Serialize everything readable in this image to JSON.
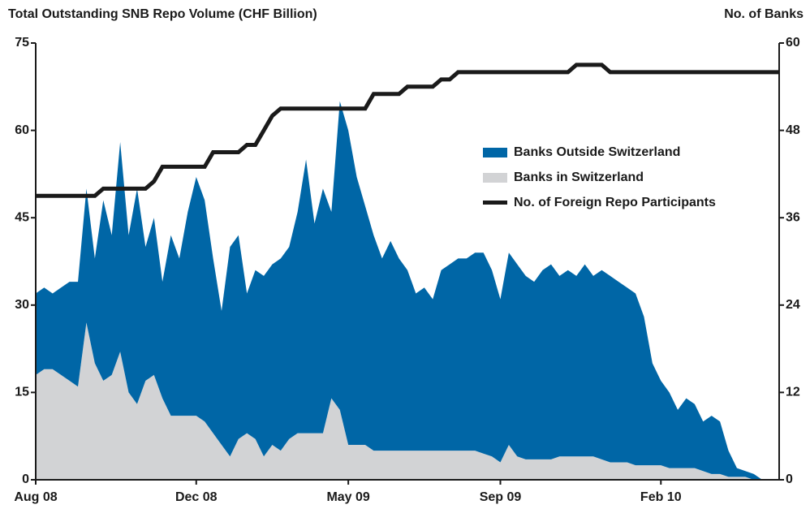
{
  "chart_data": {
    "type": "stacked_area",
    "title": "Total Outstanding SNB Repo Volume (CHF Billion)",
    "y2_label": "No. of Banks",
    "categories": [
      "Aug 08",
      null,
      null,
      null,
      null,
      null,
      null,
      null,
      null,
      null,
      null,
      null,
      null,
      null,
      null,
      null,
      null,
      null,
      null,
      "Dec 08",
      null,
      null,
      null,
      null,
      null,
      null,
      null,
      null,
      null,
      null,
      null,
      null,
      null,
      null,
      null,
      null,
      null,
      "May 09",
      null,
      null,
      null,
      null,
      null,
      null,
      null,
      null,
      null,
      null,
      null,
      null,
      null,
      null,
      null,
      null,
      null,
      "Sep 09",
      null,
      null,
      null,
      null,
      null,
      null,
      null,
      null,
      null,
      null,
      null,
      null,
      null,
      null,
      null,
      null,
      null,
      null,
      "Feb 10",
      null,
      null,
      null,
      null,
      null,
      null,
      null,
      null,
      null,
      null,
      null,
      null,
      null,
      null
    ],
    "series": [
      {
        "name": "Banks in Switzerland",
        "color": "#d2d3d5",
        "values": [
          18,
          19,
          19,
          18,
          17,
          16,
          27,
          20,
          17,
          18,
          22,
          15,
          13,
          17,
          18,
          14,
          11,
          11,
          11,
          11,
          10,
          8,
          6,
          4,
          7,
          8,
          7,
          4,
          6,
          5,
          7,
          8,
          8,
          8,
          8,
          14,
          12,
          6,
          6,
          6,
          5,
          5,
          5,
          5,
          5,
          5,
          5,
          5,
          5,
          5,
          5,
          5,
          5,
          4.5,
          4,
          3,
          6,
          4,
          3.5,
          3.5,
          3.5,
          3.5,
          4,
          4,
          4,
          4,
          4,
          3.5,
          3,
          3,
          3,
          2.5,
          2.5,
          2.5,
          2.5,
          2,
          2,
          2,
          2,
          1.5,
          1,
          1,
          0.5,
          0.5,
          0.5,
          0,
          0,
          0,
          0
        ]
      },
      {
        "name": "Banks Outside Switzerland",
        "color": "#0066a6",
        "values": [
          14,
          14,
          13,
          15,
          17,
          18,
          23,
          18,
          31,
          24,
          36,
          27,
          37,
          23,
          27,
          20,
          31,
          27,
          35,
          41,
          38,
          30,
          23,
          36,
          35,
          24,
          29,
          31,
          31,
          33,
          33,
          38,
          47,
          36,
          42,
          32,
          53,
          54,
          46,
          41,
          37,
          33,
          36,
          33,
          31,
          27,
          28,
          26,
          31,
          32,
          33,
          33,
          34,
          34.5,
          32,
          28,
          33,
          33,
          31.5,
          30.5,
          32.5,
          33.5,
          31,
          32,
          31,
          33,
          31,
          32.5,
          32,
          31,
          30,
          29.5,
          25.5,
          17.5,
          14.5,
          13,
          10,
          12,
          11,
          8.5,
          10,
          9,
          4.5,
          1.5,
          1,
          1,
          0,
          0,
          0
        ]
      },
      {
        "name": "No. of Foreign Repo Participants",
        "color": "#1a1a1a",
        "axis": "y2",
        "values": [
          39,
          39,
          39,
          39,
          39,
          39,
          39,
          39,
          40,
          40,
          40,
          40,
          40,
          40,
          41,
          43,
          43,
          43,
          43,
          43,
          43,
          45,
          45,
          45,
          45,
          46,
          46,
          48,
          50,
          51,
          51,
          51,
          51,
          51,
          51,
          51,
          51,
          51,
          51,
          51,
          53,
          53,
          53,
          53,
          54,
          54,
          54,
          54,
          55,
          55,
          56,
          56,
          56,
          56,
          56,
          56,
          56,
          56,
          56,
          56,
          56,
          56,
          56,
          56,
          57,
          57,
          57,
          57,
          56,
          56,
          56,
          56,
          56,
          56,
          56,
          56,
          56,
          56,
          56,
          56,
          56,
          56,
          56,
          56,
          56,
          56,
          56,
          56,
          56
        ]
      }
    ],
    "ylim": [
      0,
      75
    ],
    "yticks": [
      0,
      15,
      30,
      45,
      60,
      75
    ],
    "y2lim": [
      0,
      60
    ],
    "y2ticks": [
      0,
      12,
      24,
      36,
      48,
      60
    ],
    "legend": "upper right"
  }
}
